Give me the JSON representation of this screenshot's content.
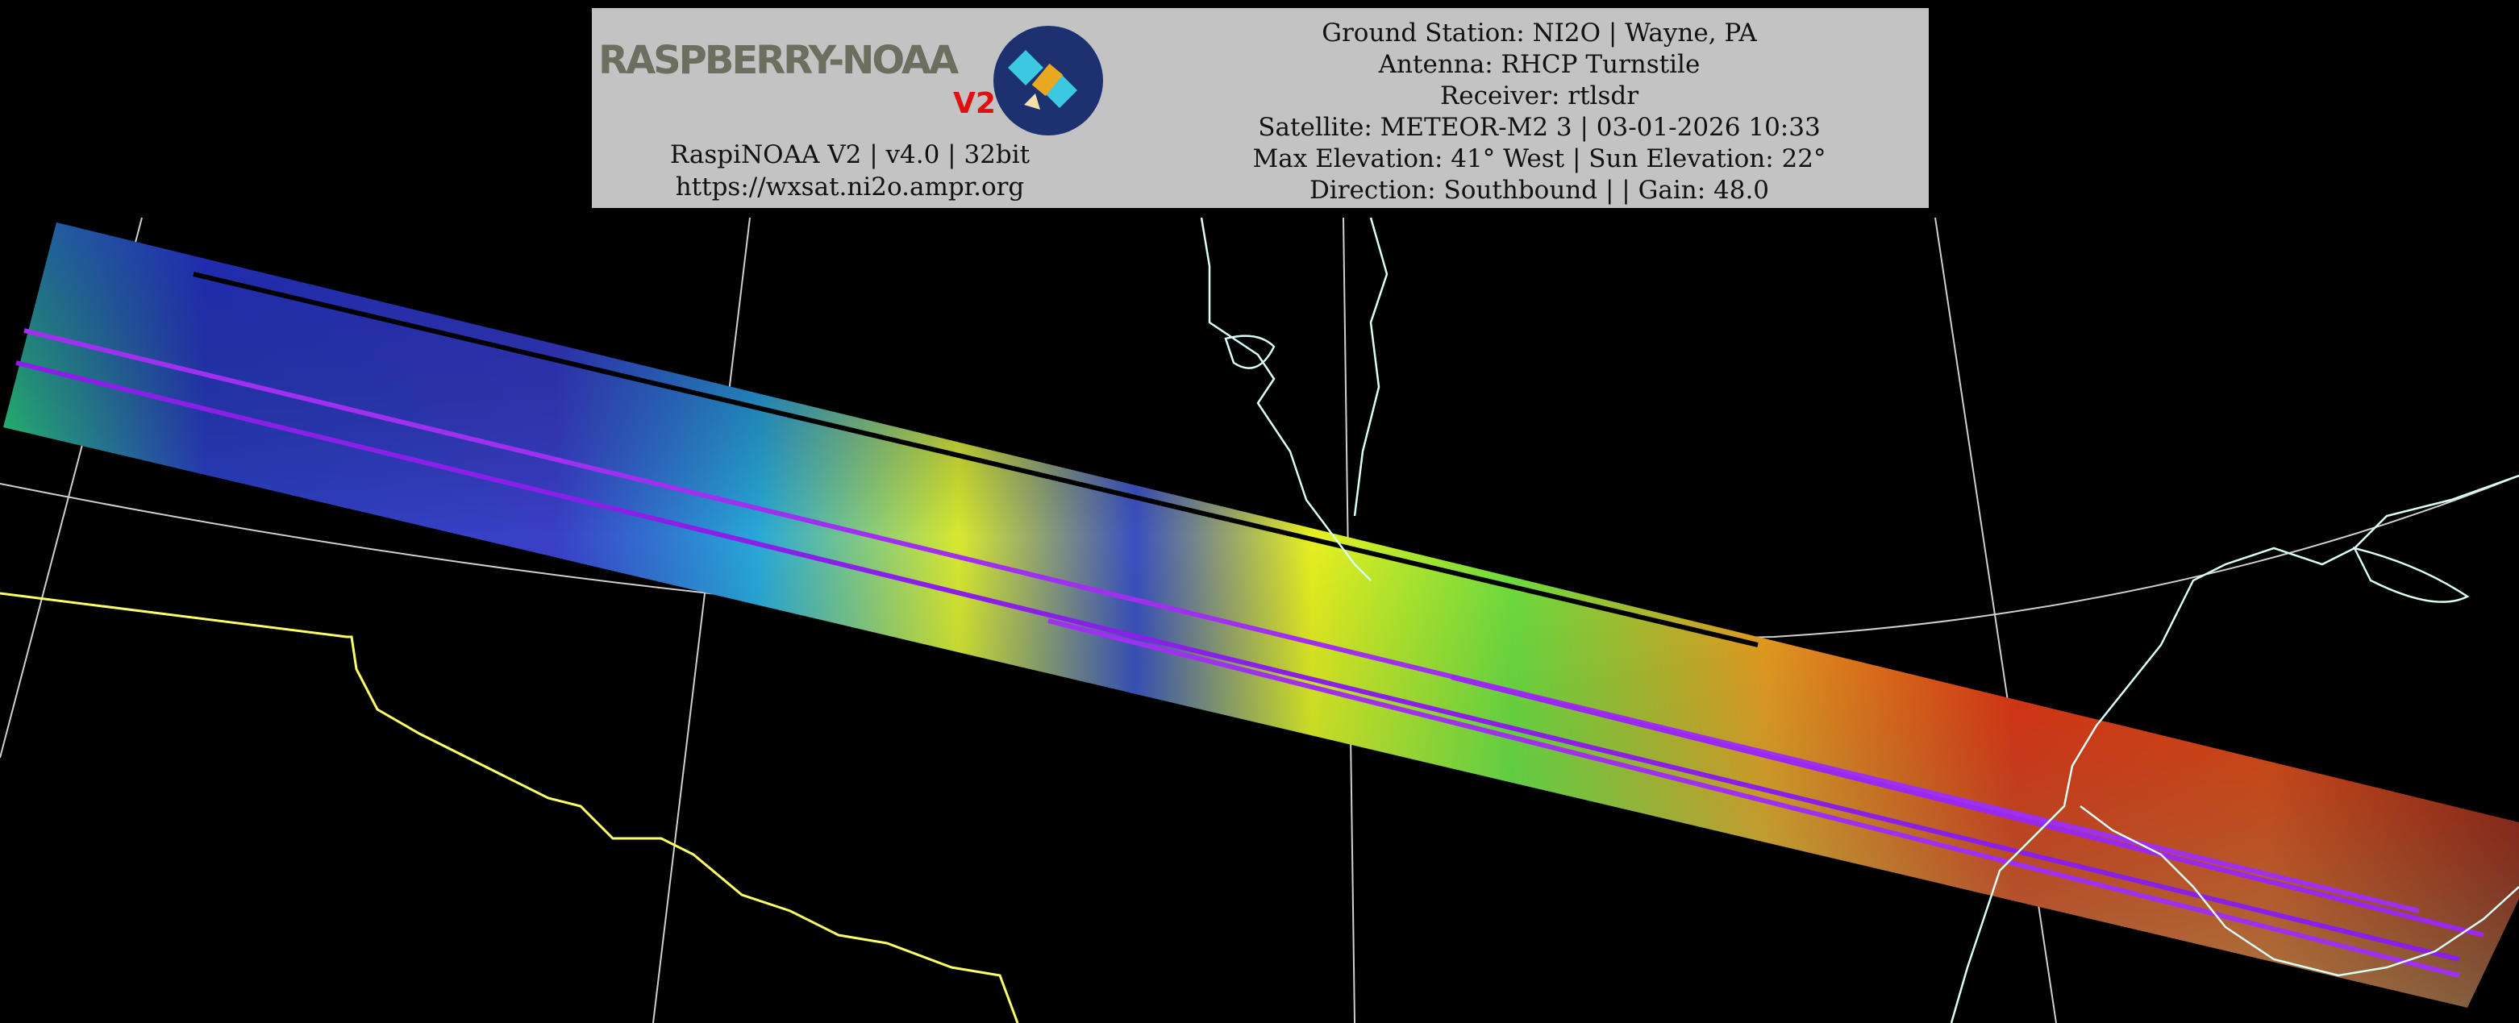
{
  "header": {
    "logo_text": "RASPBERRY-NOAA",
    "logo_version": "V2",
    "app_info": "RaspiNOAA V2 | v4.0 | 32bit",
    "website": "https://wxsat.ni2o.ampr.org",
    "ground_station": "Ground Station: NI2O | Wayne, PA",
    "antenna": "Antenna: RHCP Turnstile",
    "receiver": "Receiver: rtlsdr",
    "satellite": "Satellite: METEOR-M2 3 | 03-01-2026 10:33",
    "elevation": "Max Elevation: 41° West | Sun Elevation: 22°",
    "direction": "Direction: Southbound | | Gain: 48.0"
  },
  "colors": {
    "background": "#000000",
    "header_bg": "#c3c3c3",
    "border_line": "#ffff66",
    "coastline": "#d8fff8",
    "graticule": "#cfcfcf"
  }
}
